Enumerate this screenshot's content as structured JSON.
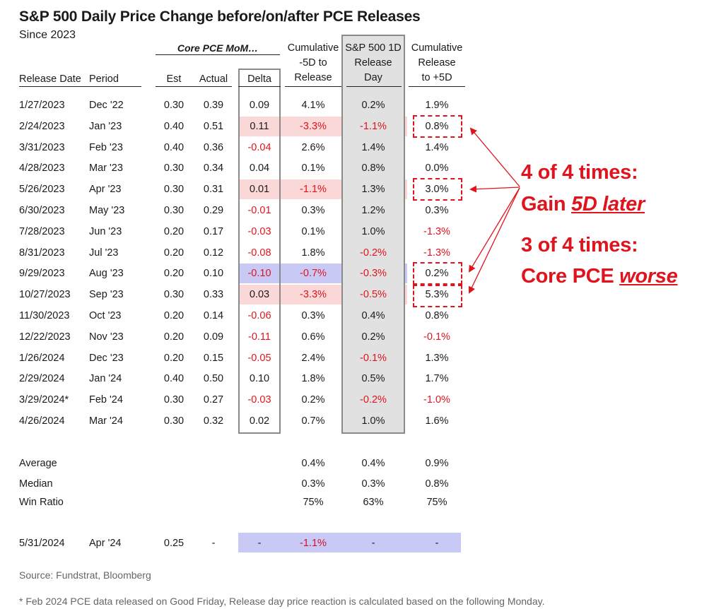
{
  "title": "S&P 500 Daily Price Change before/on/after PCE Releases",
  "subtitle": "Since 2023",
  "group_header": "Core PCE MoM…",
  "headers": {
    "release_date": "Release Date",
    "period": "Period",
    "est": "Est",
    "actual": "Actual",
    "delta": "Delta",
    "cum_before": [
      "Cumulative",
      "-5D to",
      "Release"
    ],
    "release_day": [
      "S&P 500 1D",
      "Release",
      "Day"
    ],
    "cum_after": [
      "Cumulative",
      "Release",
      "to +5D"
    ]
  },
  "rows": [
    {
      "date": "1/27/2023",
      "period": "Dec '22",
      "est": "0.30",
      "actual": "0.39",
      "delta": "0.09",
      "cum_before": "4.1%",
      "release_day": "0.2%",
      "cum_after": "1.9%",
      "highlight": ""
    },
    {
      "date": "2/24/2023",
      "period": "Jan '23",
      "est": "0.40",
      "actual": "0.51",
      "delta": "0.11",
      "cum_before": "-3.3%",
      "release_day": "-1.1%",
      "cum_after": "0.8%",
      "highlight": "pink"
    },
    {
      "date": "3/31/2023",
      "period": "Feb '23",
      "est": "0.40",
      "actual": "0.36",
      "delta": "-0.04",
      "cum_before": "2.6%",
      "release_day": "1.4%",
      "cum_after": "1.4%",
      "highlight": ""
    },
    {
      "date": "4/28/2023",
      "period": "Mar '23",
      "est": "0.30",
      "actual": "0.34",
      "delta": "0.04",
      "cum_before": "0.1%",
      "release_day": "0.8%",
      "cum_after": "0.0%",
      "highlight": ""
    },
    {
      "date": "5/26/2023",
      "period": "Apr '23",
      "est": "0.30",
      "actual": "0.31",
      "delta": "0.01",
      "cum_before": "-1.1%",
      "release_day": "1.3%",
      "cum_after": "3.0%",
      "highlight": "pink"
    },
    {
      "date": "6/30/2023",
      "period": "May '23",
      "est": "0.30",
      "actual": "0.29",
      "delta": "-0.01",
      "cum_before": "0.3%",
      "release_day": "1.2%",
      "cum_after": "0.3%",
      "highlight": ""
    },
    {
      "date": "7/28/2023",
      "period": "Jun '23",
      "est": "0.20",
      "actual": "0.17",
      "delta": "-0.03",
      "cum_before": "0.1%",
      "release_day": "1.0%",
      "cum_after": "-1.3%",
      "highlight": ""
    },
    {
      "date": "8/31/2023",
      "period": "Jul '23",
      "est": "0.20",
      "actual": "0.12",
      "delta": "-0.08",
      "cum_before": "1.8%",
      "release_day": "-0.2%",
      "cum_after": "-1.3%",
      "highlight": ""
    },
    {
      "date": "9/29/2023",
      "period": "Aug '23",
      "est": "0.20",
      "actual": "0.10",
      "delta": "-0.10",
      "cum_before": "-0.7%",
      "release_day": "-0.3%",
      "cum_after": "0.2%",
      "highlight": "blue"
    },
    {
      "date": "10/27/2023",
      "period": "Sep '23",
      "est": "0.30",
      "actual": "0.33",
      "delta": "0.03",
      "cum_before": "-3.3%",
      "release_day": "-0.5%",
      "cum_after": "5.3%",
      "highlight": "pink"
    },
    {
      "date": "11/30/2023",
      "period": "Oct '23",
      "est": "0.20",
      "actual": "0.14",
      "delta": "-0.06",
      "cum_before": "0.3%",
      "release_day": "0.4%",
      "cum_after": "0.8%",
      "highlight": ""
    },
    {
      "date": "12/22/2023",
      "period": "Nov '23",
      "est": "0.20",
      "actual": "0.09",
      "delta": "-0.11",
      "cum_before": "0.6%",
      "release_day": "0.2%",
      "cum_after": "-0.1%",
      "highlight": ""
    },
    {
      "date": "1/26/2024",
      "period": "Dec '23",
      "est": "0.20",
      "actual": "0.15",
      "delta": "-0.05",
      "cum_before": "2.4%",
      "release_day": "-0.1%",
      "cum_after": "1.3%",
      "highlight": ""
    },
    {
      "date": "2/29/2024",
      "period": "Jan '24",
      "est": "0.40",
      "actual": "0.50",
      "delta": "0.10",
      "cum_before": "1.8%",
      "release_day": "0.5%",
      "cum_after": "1.7%",
      "highlight": ""
    },
    {
      "date": "3/29/2024*",
      "period": "Feb '24",
      "est": "0.30",
      "actual": "0.27",
      "delta": "-0.03",
      "cum_before": "0.2%",
      "release_day": "-0.2%",
      "cum_after": "-1.0%",
      "highlight": ""
    },
    {
      "date": "4/26/2024",
      "period": "Mar '24",
      "est": "0.30",
      "actual": "0.32",
      "delta": "0.02",
      "cum_before": "0.7%",
      "release_day": "1.0%",
      "cum_after": "1.6%",
      "highlight": ""
    }
  ],
  "summary": [
    {
      "label": "Average",
      "cum_before": "0.4%",
      "release_day": "0.4%",
      "cum_after": "0.9%"
    },
    {
      "label": "Median",
      "cum_before": "0.3%",
      "release_day": "0.3%",
      "cum_after": "0.8%"
    },
    {
      "label": "Win Ratio",
      "cum_before": "75%",
      "release_day": "63%",
      "cum_after": "75%"
    }
  ],
  "upcoming": {
    "date": "5/31/2024",
    "period": "Apr '24",
    "est": "0.25",
    "actual": "-",
    "delta": "-",
    "cum_before": "-1.1%",
    "release_day": "-",
    "cum_after": "-"
  },
  "callouts": {
    "line1": "4 of 4 times:",
    "line2_prefix": "Gain ",
    "line2_emph": "5D later",
    "line3": "3 of 4 times:",
    "line4_prefix": "Core PCE ",
    "line4_emph": "worse"
  },
  "source": "Source: Fundstrat, Bloomberg",
  "footnote": "* Feb 2024 PCE data released on Good Friday, Release day price reaction is calculated based on the following Monday.",
  "colors": {
    "negative": "#e0141e",
    "pink_highlight": "#fbd8d8",
    "blue_highlight": "#c9c9f6",
    "shaded_column": "#e1e1e1"
  }
}
